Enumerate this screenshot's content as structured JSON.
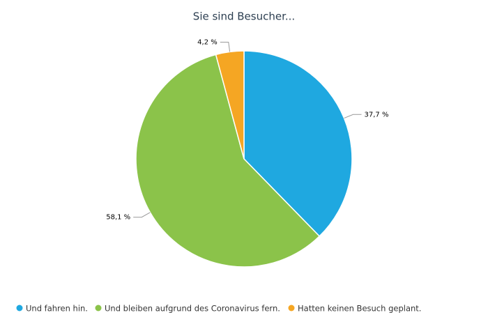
{
  "chart_data": {
    "type": "pie",
    "title": "Sie sind Besucher...",
    "categories": [
      "Und fahren hin.",
      "Und bleiben aufgrund des Coronavirus fern.",
      "Hatten keinen Besuch geplant."
    ],
    "values": [
      37.7,
      58.1,
      4.2
    ],
    "value_labels": [
      "37,7 %",
      "58,1 %",
      "4,2 %"
    ],
    "colors": [
      "#1fa8e0",
      "#8bc34a",
      "#f5a623"
    ],
    "legend": "bottom"
  }
}
